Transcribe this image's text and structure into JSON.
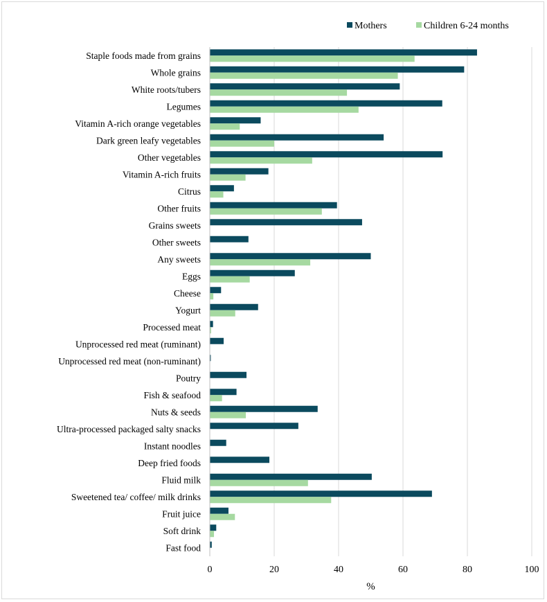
{
  "chart_data": {
    "type": "bar",
    "orientation": "horizontal",
    "xlabel": "%",
    "ylabel": "",
    "xlim": [
      0,
      100
    ],
    "xticks": [
      "0",
      "20",
      "40",
      "60",
      "80",
      "100"
    ],
    "grid": "vertical",
    "legend_position": "top-right",
    "categories": [
      "Staple foods made from grains",
      "Whole grains",
      "White roots/tubers",
      "Legumes",
      "Vitamin A-rich orange vegetables",
      "Dark green leafy vegetables",
      "Other vegetables",
      "Vitamin A-rich fruits",
      "Citrus",
      "Other fruits",
      "Grains sweets",
      "Other sweets",
      "Any sweets",
      "Eggs",
      "Cheese",
      "Yogurt",
      "Processed meat",
      "Unprocessed red meat (ruminant)",
      "Unprocessed red meat (non-ruminant)",
      "Poutry",
      "Fish & seafood",
      "Nuts & seeds",
      "Ultra-processed packaged salty snacks",
      "Instant noodles",
      "Deep fried foods",
      "Fluid milk",
      "Sweetened tea/ coffee/ milk drinks",
      "Fruit juice",
      "Soft drink",
      "Fast food"
    ],
    "series": [
      {
        "name": "Mothers",
        "color": "#0b4a5e",
        "values": [
          83,
          79,
          59,
          72.2,
          15.8,
          54,
          72.3,
          18.2,
          7.5,
          39.5,
          47.3,
          12,
          50,
          26.4,
          3.5,
          15,
          1,
          4.3,
          0.3,
          11.4,
          8.3,
          33.5,
          27.5,
          5.1,
          18.5,
          50.3,
          69,
          5.8,
          2,
          0.6
        ]
      },
      {
        "name": "Children 6-24 months",
        "color": "#a6d9a1",
        "values": [
          63.6,
          58.4,
          42.6,
          46.2,
          9.3,
          20,
          31.8,
          11.1,
          4.2,
          34.8,
          0,
          0,
          31.2,
          12.4,
          1.1,
          7.9,
          0.4,
          0,
          0,
          0,
          3.8,
          11.2,
          0,
          0,
          0,
          30.5,
          37.7,
          7.8,
          1.3,
          0
        ]
      }
    ]
  }
}
